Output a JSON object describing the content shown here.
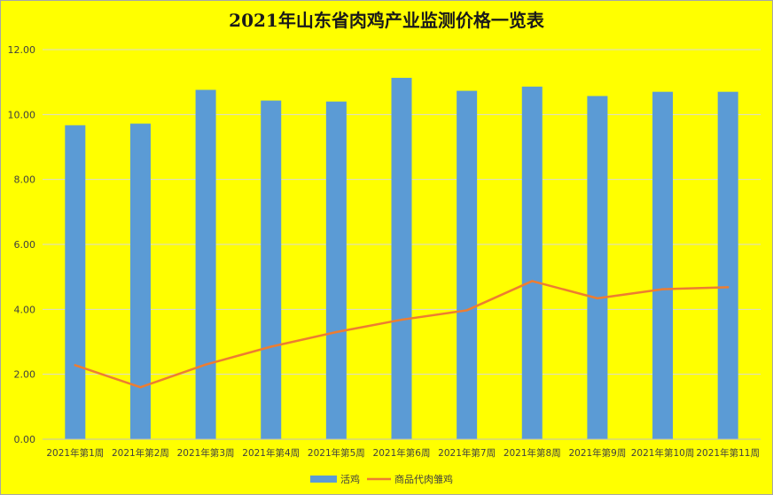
{
  "chart_data": {
    "type": "bar",
    "title": "2021年山东省肉鸡产业监测价格一览表",
    "categories": [
      "2021年第1周",
      "2021年第2周",
      "2021年第3周",
      "2021年第4周",
      "2021年第5周",
      "2021年第6周",
      "2021年第7周",
      "2021年第8周",
      "2021年第9周",
      "2021年第10周",
      "2021年第11周"
    ],
    "series": [
      {
        "name": "活鸡",
        "type": "bar",
        "color": "#5b9bd5",
        "values": [
          9.67,
          9.72,
          10.76,
          10.43,
          10.4,
          11.13,
          10.73,
          10.86,
          10.57,
          10.7,
          10.7
        ]
      },
      {
        "name": "商品代肉雏鸡",
        "type": "line",
        "color": "#ed7d31",
        "values": [
          2.28,
          1.6,
          2.3,
          2.85,
          3.3,
          3.68,
          3.97,
          4.87,
          4.34,
          4.62,
          4.68
        ]
      }
    ],
    "ylim": [
      0,
      12
    ],
    "yticks": [
      "0.00",
      "2.00",
      "4.00",
      "6.00",
      "8.00",
      "10.00",
      "12.00"
    ],
    "grid": true,
    "legend": "bottom",
    "background": "#ffff00"
  }
}
